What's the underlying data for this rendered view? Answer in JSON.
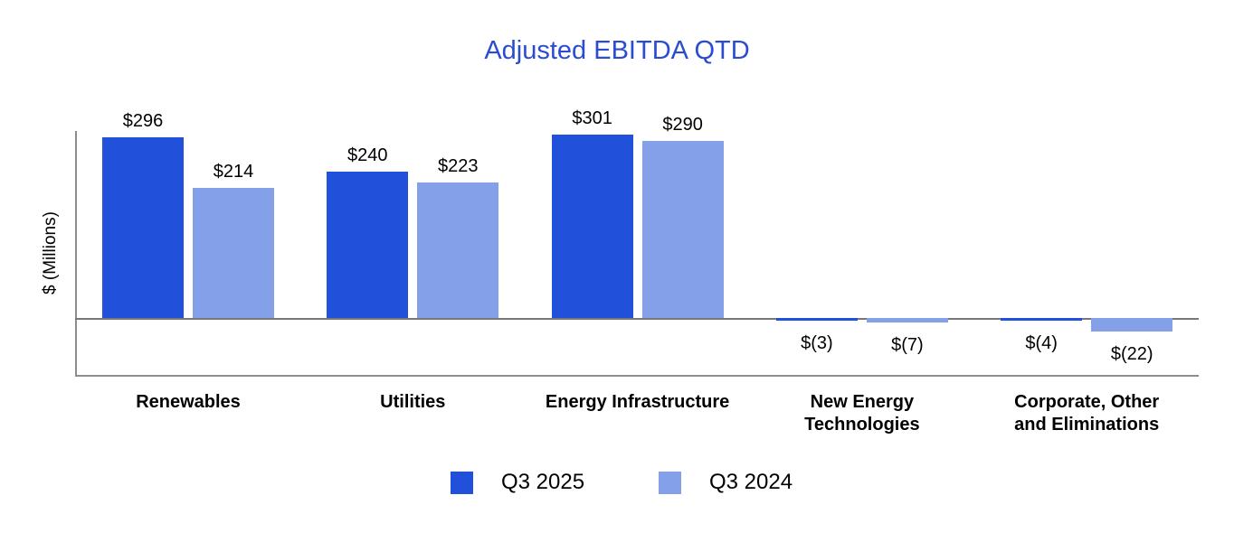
{
  "chart_data": {
    "type": "bar",
    "title": "Adjusted EBITDA QTD",
    "title_color": "#2B4BD1",
    "ylabel": "$ (Millions)",
    "grid": false,
    "legend_position": "bottom",
    "axis_color": "#8c8c8c",
    "categories": [
      "Renewables",
      "Utilities",
      "Energy Infrastructure",
      "New Energy\nTechnologies",
      "Corporate, Other\nand Eliminations"
    ],
    "series": [
      {
        "name": "Q3 2025",
        "color": "#2151DB",
        "values": [
          296,
          240,
          301,
          -3,
          -4
        ],
        "data_labels": [
          "$296",
          "$240",
          "$301",
          "$(3)",
          "$(4)"
        ]
      },
      {
        "name": "Q3 2024",
        "color": "#84A0E8",
        "values": [
          214,
          223,
          290,
          -7,
          -22
        ],
        "data_labels": [
          "$214",
          "$223",
          "$290",
          "$(7)",
          "$(22)"
        ]
      }
    ]
  }
}
